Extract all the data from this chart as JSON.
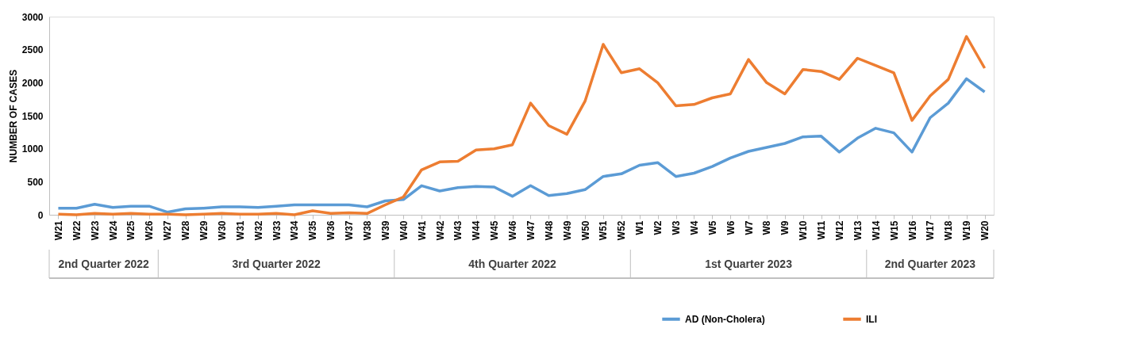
{
  "chart_data": {
    "type": "line",
    "ylabel": "NUMBER OF CASES",
    "categories": [
      "W21",
      "W22",
      "W23",
      "W24",
      "W25",
      "W26",
      "W27",
      "W28",
      "W29",
      "W30",
      "W31",
      "W32",
      "W33",
      "W34",
      "W35",
      "W36",
      "W37",
      "W38",
      "W39",
      "W40",
      "W41",
      "W42",
      "W43",
      "W44",
      "W45",
      "W46",
      "W47",
      "W48",
      "W49",
      "W50",
      "W51",
      "W52",
      "W1",
      "W2",
      "W3",
      "W4",
      "W5",
      "W6",
      "W7",
      "W8",
      "W9",
      "W10",
      "W11",
      "W12",
      "W13",
      "W14",
      "W15",
      "W16",
      "W17",
      "W18",
      "W19",
      "W20"
    ],
    "series": [
      {
        "name": "AD (Non-Cholera)",
        "color": "#5b9bd5",
        "values": [
          100,
          100,
          160,
          110,
          130,
          130,
          40,
          90,
          100,
          120,
          120,
          110,
          130,
          150,
          150,
          150,
          150,
          120,
          210,
          230,
          440,
          360,
          410,
          430,
          420,
          280,
          440,
          290,
          320,
          380,
          580,
          620,
          750,
          790,
          580,
          630,
          730,
          860,
          960,
          1020,
          1080,
          1180,
          1190,
          950,
          1160,
          1310,
          1240,
          950,
          1470,
          1690,
          2060,
          1860
        ]
      },
      {
        "name": "ILI",
        "color": "#ed7d31",
        "values": [
          10,
          0,
          20,
          10,
          20,
          10,
          10,
          0,
          10,
          20,
          10,
          10,
          20,
          0,
          60,
          20,
          30,
          20,
          150,
          270,
          680,
          800,
          810,
          980,
          1000,
          1060,
          1690,
          1350,
          1220,
          1720,
          2580,
          2150,
          2210,
          2000,
          1650,
          1670,
          1770,
          1830,
          2350,
          2000,
          1830,
          2200,
          2170,
          2050,
          2370,
          2260,
          2150,
          1430,
          1800,
          2050,
          2700,
          2220
        ]
      }
    ],
    "ylim": [
      0,
      3000
    ],
    "yticks": [
      0,
      500,
      1000,
      1500,
      2000,
      2500,
      3000
    ],
    "grid": false,
    "legend": "bottom right",
    "marker": "none",
    "line_style": "solid",
    "annotations": [
      "2nd Quarter 2022",
      "3rd Quarter 2022",
      "4th Quarter 2022",
      "1st Quarter 2023",
      "2nd Quarter 2023"
    ]
  }
}
